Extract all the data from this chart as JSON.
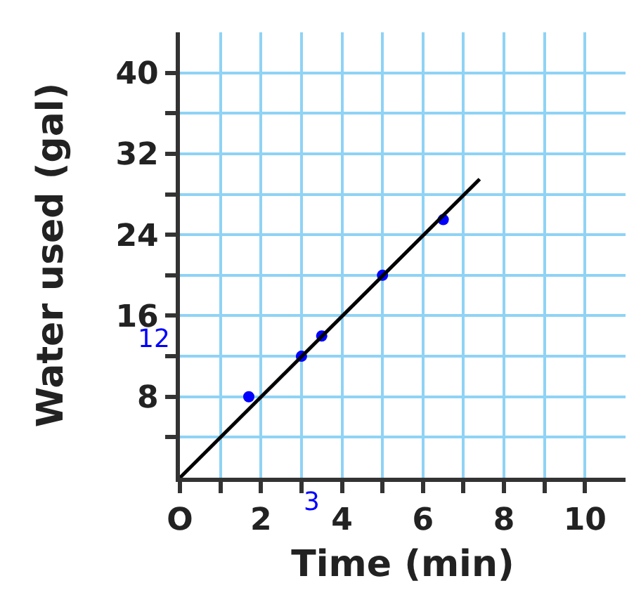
{
  "chart_data": {
    "type": "scatter",
    "xlabel": "Time (min)",
    "ylabel": "Water used (gal)",
    "xlim": [
      0,
      11
    ],
    "ylim": [
      0,
      44
    ],
    "xticks": [
      {
        "value": 0,
        "label": "O"
      },
      {
        "value": 1,
        "label": null
      },
      2,
      {
        "value": 3,
        "label": null
      },
      4,
      {
        "value": 5,
        "label": null
      },
      6,
      {
        "value": 7,
        "label": null
      },
      8,
      {
        "value": 9,
        "label": null
      },
      10
    ],
    "yticks": [
      {
        "value": 4,
        "label": null
      },
      8,
      {
        "value": 12,
        "label": null
      },
      16,
      {
        "value": 20,
        "label": null
      },
      24,
      {
        "value": 28,
        "label": null
      },
      32,
      {
        "value": 36,
        "label": null
      },
      40
    ],
    "grid": true,
    "series": [
      {
        "color": "#0000ff",
        "marker": "circle",
        "x": [
          1.7,
          3,
          3.5,
          5,
          6.5
        ],
        "values": [
          8,
          12,
          14,
          20,
          25.5
        ]
      },
      {
        "type": "line",
        "color": "#000000",
        "x": [
          0,
          7.4
        ],
        "values": [
          0,
          29.5
        ]
      }
    ],
    "annotations": [
      "12",
      "3"
    ]
  }
}
